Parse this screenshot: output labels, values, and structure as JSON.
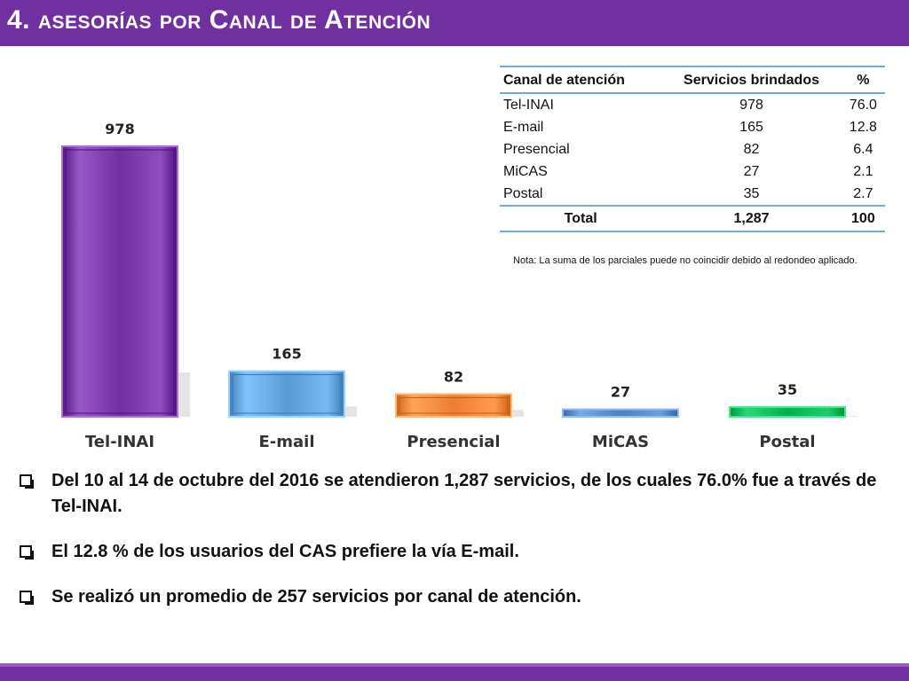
{
  "header": {
    "title": "4. asesorías por Canal de Atención"
  },
  "colors": {
    "title_bar": "#7030a0",
    "tel_inai": "#7030a0",
    "email": "#5b9bd5",
    "presencial": "#ed7d31",
    "micas": "#4f81bd",
    "postal": "#00b050"
  },
  "chart_data": {
    "type": "bar",
    "categories": [
      "Tel-INAI",
      "E-mail",
      "Presencial",
      "MiCAS",
      "Postal"
    ],
    "values": [
      978,
      165,
      82,
      27,
      35
    ],
    "data_labels": [
      "978",
      "165",
      "82",
      "27",
      "35"
    ],
    "colors": [
      "#7030a0",
      "#5b9bd5",
      "#ed7d31",
      "#4f81bd",
      "#00b050"
    ],
    "title": "",
    "xlabel": "",
    "ylabel": "",
    "ylim": [
      0,
      978
    ],
    "grid": false,
    "legend": "none"
  },
  "table": {
    "headers": [
      "Canal de atención",
      "Servicios brindados",
      "%"
    ],
    "rows": [
      [
        "Tel-INAI",
        "978",
        "76.0"
      ],
      [
        "E-mail",
        "165",
        "12.8"
      ],
      [
        "Presencial",
        "82",
        "6.4"
      ],
      [
        "MiCAS",
        "27",
        "2.1"
      ],
      [
        "Postal",
        "35",
        "2.7"
      ]
    ],
    "total": [
      "Total",
      "1,287",
      "100"
    ]
  },
  "note": "Nota: La suma de los parciales puede no coincidir debido al redondeo aplicado.",
  "bullets": [
    "Del 10 al 14 de octubre del 2016 se atendieron 1,287 servicios, de los cuales 76.0% fue a través de Tel-INAI.",
    "El 12.8 % de los usuarios del CAS prefiere la vía E-mail.",
    "Se realizó un promedio de 257 servicios por canal de atención."
  ]
}
